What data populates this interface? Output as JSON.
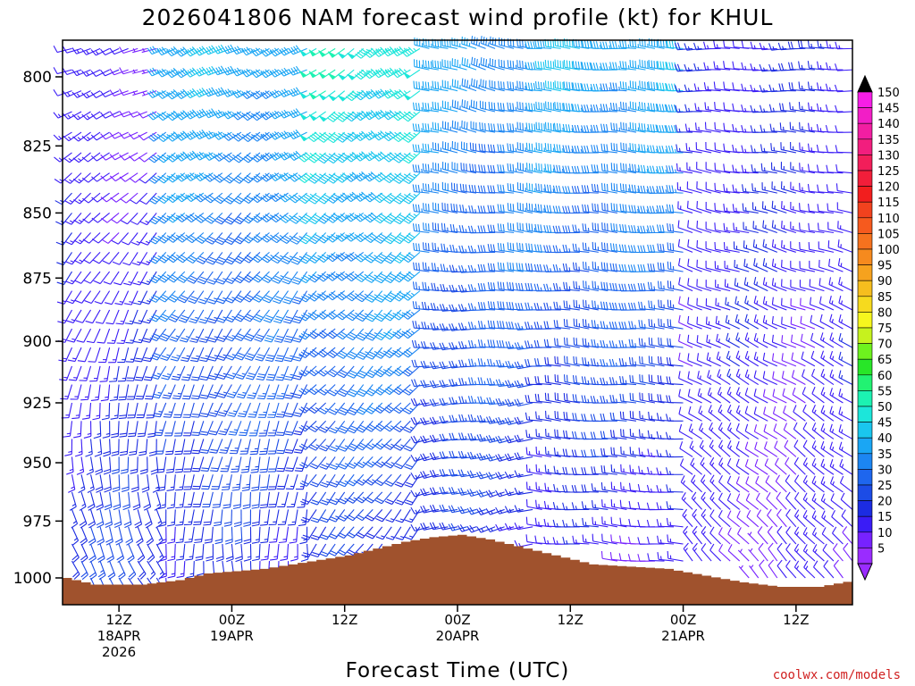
{
  "chart_data": {
    "type": "wind-barb-time-height",
    "title": "2026041806 NAM forecast wind profile (kt) for KHUL",
    "xlabel": "Forecast Time (UTC)",
    "units": "kt",
    "pressure_ylim": [
      1010,
      790
    ],
    "y_ticks": [
      "800",
      "825",
      "850",
      "875",
      "900",
      "925",
      "950",
      "975",
      "1000"
    ],
    "y_tick_values": [
      800,
      825,
      850,
      875,
      900,
      925,
      950,
      975,
      1000
    ],
    "time_range_hours": [
      0,
      84
    ],
    "x_ticks": [
      {
        "hour": 6,
        "line1": "12Z",
        "line2": "18APR",
        "line3": "2026"
      },
      {
        "hour": 18,
        "line1": "00Z",
        "line2": "19APR",
        "line3": ""
      },
      {
        "hour": 30,
        "line1": "12Z",
        "line2": "",
        "line3": ""
      },
      {
        "hour": 42,
        "line1": "00Z",
        "line2": "20APR",
        "line3": ""
      },
      {
        "hour": 54,
        "line1": "12Z",
        "line2": "",
        "line3": ""
      },
      {
        "hour": 66,
        "line1": "00Z",
        "line2": "21APR",
        "line3": ""
      },
      {
        "hour": 78,
        "line1": "12Z",
        "line2": "",
        "line3": ""
      }
    ],
    "colorbar": {
      "labels": [
        "5",
        "10",
        "15",
        "20",
        "25",
        "30",
        "35",
        "40",
        "45",
        "50",
        "55",
        "60",
        "65",
        "70",
        "75",
        "80",
        "85",
        "90",
        "95",
        "100",
        "105",
        "110",
        "115",
        "120",
        "125",
        "130",
        "135",
        "140",
        "145",
        "150"
      ],
      "colors": [
        "#9a2cff",
        "#7722ff",
        "#3a1cf6",
        "#1c2ce2",
        "#1c4ce6",
        "#1e66ee",
        "#1c86f2",
        "#1aa6f4",
        "#1ac6ee",
        "#1ce6da",
        "#1cf2b2",
        "#22f272",
        "#28e628",
        "#6ef21e",
        "#c6f21e",
        "#f6f61e",
        "#f6da1e",
        "#f6be1e",
        "#f6a21e",
        "#f68a1e",
        "#f6721e",
        "#f65a1e",
        "#f2421e",
        "#f21e1e",
        "#f21e3a",
        "#f21e5a",
        "#f21e7e",
        "#f21ea2",
        "#f21ec6",
        "#f61ee6"
      ]
    },
    "surface_pressure_hpa": [
      {
        "hour": 0,
        "p": 1000
      },
      {
        "hour": 3,
        "p": 1003
      },
      {
        "hour": 8,
        "p": 1003
      },
      {
        "hour": 12,
        "p": 1001
      },
      {
        "hour": 15,
        "p": 998
      },
      {
        "hour": 21,
        "p": 996
      },
      {
        "hour": 24,
        "p": 994
      },
      {
        "hour": 30,
        "p": 990
      },
      {
        "hour": 33,
        "p": 987
      },
      {
        "hour": 36,
        "p": 984
      },
      {
        "hour": 39,
        "p": 982
      },
      {
        "hour": 42,
        "p": 981
      },
      {
        "hour": 45,
        "p": 983
      },
      {
        "hour": 48,
        "p": 986
      },
      {
        "hour": 52,
        "p": 990
      },
      {
        "hour": 56,
        "p": 994
      },
      {
        "hour": 60,
        "p": 995
      },
      {
        "hour": 64,
        "p": 996
      },
      {
        "hour": 68,
        "p": 999
      },
      {
        "hour": 72,
        "p": 1002
      },
      {
        "hour": 76,
        "p": 1004
      },
      {
        "hour": 80,
        "p": 1004
      },
      {
        "hour": 84,
        "p": 1001
      }
    ],
    "wind_regimes": [
      {
        "hours": [
          0,
          10
        ],
        "dir_low": 150,
        "dir_high": 250,
        "spd_low": 20,
        "spd_high": 10
      },
      {
        "hours": [
          10,
          26
        ],
        "dir_low": 175,
        "dir_high": 245,
        "spd_low": 15,
        "spd_high": 38
      },
      {
        "hours": [
          26,
          38
        ],
        "dir_low": 215,
        "dir_high": 235,
        "spd_low": 15,
        "spd_high": 48
      },
      {
        "hours": [
          38,
          50
        ],
        "dir_low": 250,
        "dir_high": 285,
        "spd_low": 15,
        "spd_high": 35
      },
      {
        "hours": [
          50,
          66
        ],
        "dir_low": 275,
        "dir_high": 275,
        "spd_low": 10,
        "spd_high": 38
      },
      {
        "hours": [
          66,
          84
        ],
        "dir_low": 320,
        "dir_high": 270,
        "spd_low": 10,
        "spd_high": 15
      }
    ],
    "credit": "coolwx.com/models"
  }
}
